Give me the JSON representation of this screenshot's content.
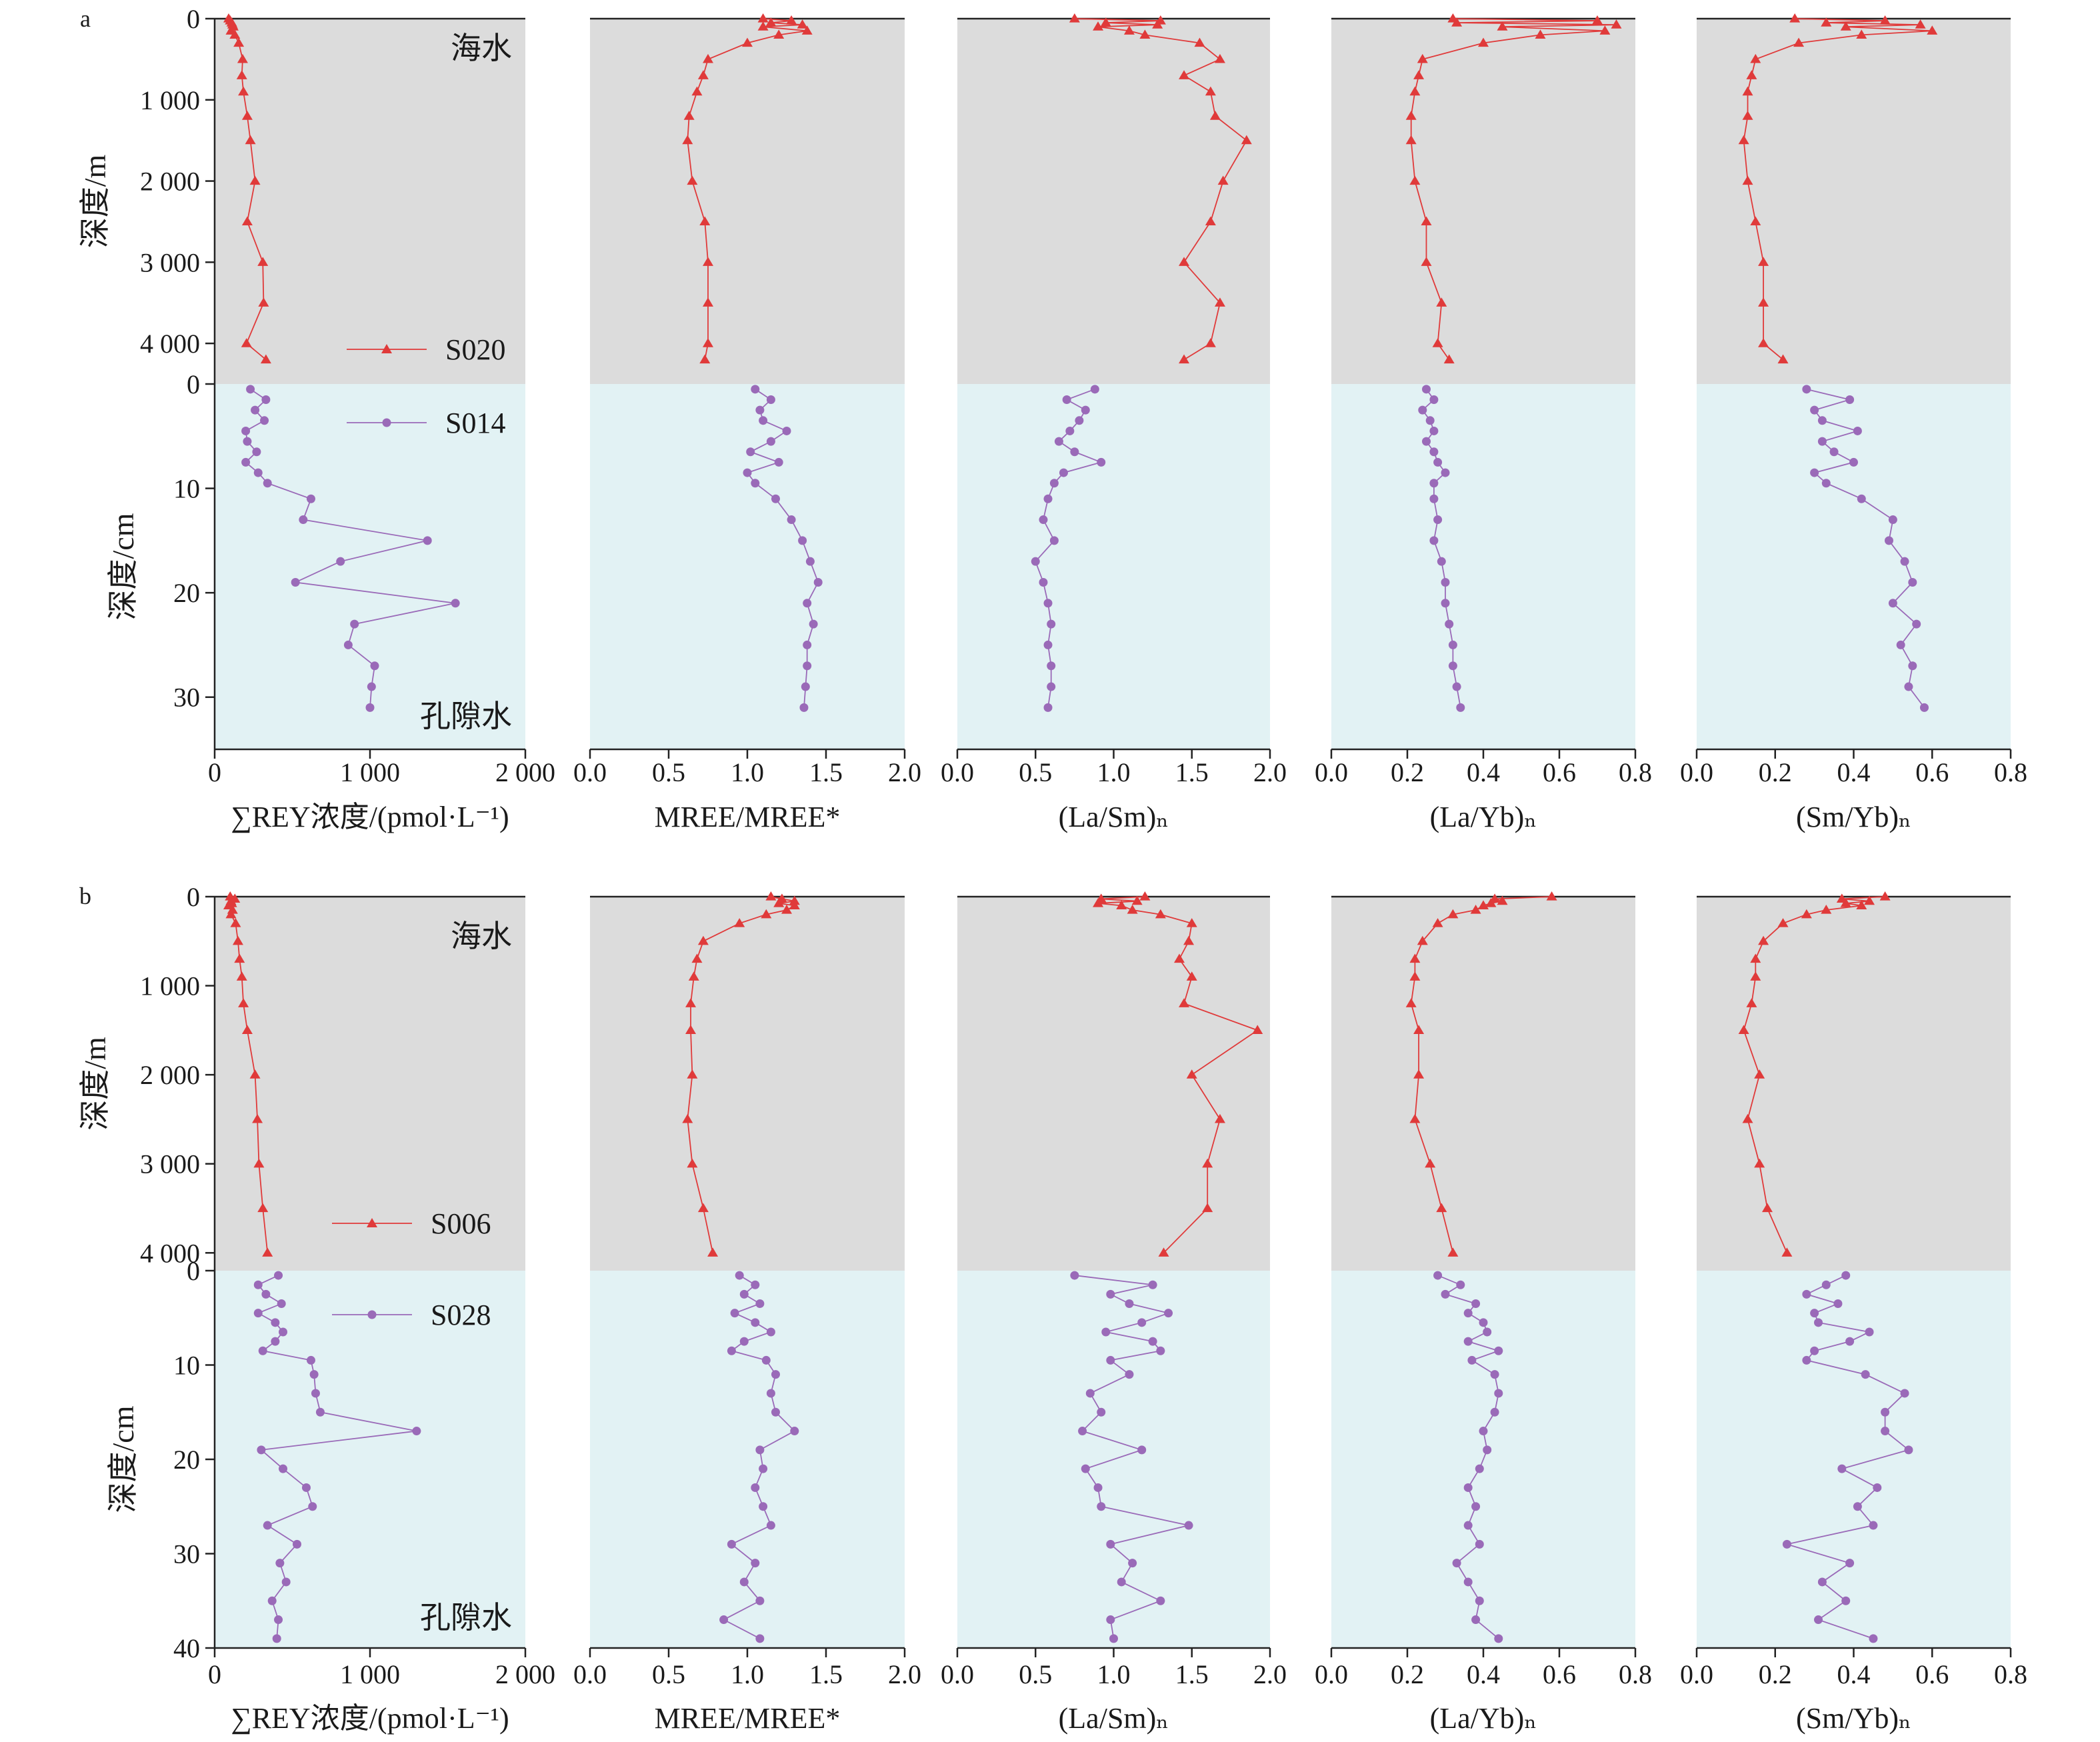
{
  "colors": {
    "seawater_bg": "#dcdcdc",
    "porewater_bg": "#e2f2f4",
    "seawater_series": "#e03a3a",
    "porewater_series": "#9a6ab8"
  },
  "labels": {
    "seawater": "海水",
    "porewater": "孔隙水",
    "ylabel_sea": "深度/m",
    "ylabel_pore": "深度/cm"
  },
  "panels": [
    {
      "tag": "a",
      "sea_ticks": [
        "0",
        "1 000",
        "2 000",
        "3 000",
        "4 000"
      ],
      "pore_ticks": [
        "0",
        "10",
        "20",
        "30"
      ],
      "legend": [
        "S020",
        "S014"
      ]
    },
    {
      "tag": "b",
      "sea_ticks": [
        "0",
        "1 000",
        "2 000",
        "3 000",
        "4 000"
      ],
      "pore_ticks": [
        "0",
        "10",
        "20",
        "30",
        "40"
      ],
      "legend": [
        "S006",
        "S028"
      ]
    }
  ],
  "columns": [
    {
      "xlabel": "∑REY浓度/(pmol·L⁻¹)",
      "xticks": [
        "0",
        "1 000",
        "2 000"
      ]
    },
    {
      "xlabel": "MREE/MREE*",
      "xticks": [
        "0.0",
        "0.5",
        "1.0",
        "1.5",
        "2.0"
      ]
    },
    {
      "xlabel": "(La/Sm)ₙ",
      "xticks": [
        "0.0",
        "0.5",
        "1.0",
        "1.5",
        "2.0"
      ]
    },
    {
      "xlabel": "(La/Yb)ₙ",
      "xticks": [
        "0.0",
        "0.2",
        "0.4",
        "0.6",
        "0.8"
      ]
    },
    {
      "xlabel": "(Sm/Yb)ₙ",
      "xticks": [
        "0.0",
        "0.2",
        "0.4",
        "0.6",
        "0.8"
      ]
    }
  ],
  "chart_data": [
    {
      "type": "line",
      "panel": "a",
      "y_axis": {
        "seawater": "深度/m",
        "porewater": "深度/cm"
      },
      "ylim_seawater_m": [
        0,
        4500
      ],
      "ylim_porewater_cm": [
        0,
        35
      ],
      "xlim": [
        [
          0,
          2000
        ],
        [
          0,
          2
        ],
        [
          0,
          2
        ],
        [
          0,
          0.8
        ],
        [
          0,
          0.8
        ]
      ],
      "seawater_depth_m": [
        0,
        25,
        50,
        75,
        100,
        150,
        200,
        300,
        500,
        700,
        900,
        1200,
        1500,
        2000,
        2500,
        3000,
        3500,
        4000,
        4200
      ],
      "porewater_depth_cm": [
        0.5,
        1.5,
        2.5,
        3.5,
        4.5,
        5.5,
        6.5,
        7.5,
        8.5,
        9.5,
        11,
        13,
        15,
        17,
        19,
        21,
        23,
        25,
        27,
        29,
        31
      ],
      "series": [
        {
          "name": "S020",
          "medium": "seawater",
          "variable": "∑REY",
          "values": [
            90,
            100,
            110,
            115,
            120,
            105,
            130,
            155,
            180,
            175,
            185,
            210,
            230,
            260,
            210,
            310,
            315,
            205,
            330
          ]
        },
        {
          "name": "S020",
          "medium": "seawater",
          "variable": "MREE/MREE*",
          "values": [
            1.1,
            1.28,
            1.15,
            1.35,
            1.1,
            1.38,
            1.2,
            1.0,
            0.75,
            0.72,
            0.68,
            0.63,
            0.62,
            0.65,
            0.73,
            0.75,
            0.75,
            0.75,
            0.73
          ]
        },
        {
          "name": "S020",
          "medium": "seawater",
          "variable": "(La/Sm)n",
          "values": [
            0.75,
            1.3,
            0.95,
            1.28,
            0.9,
            1.1,
            1.2,
            1.55,
            1.68,
            1.45,
            1.62,
            1.65,
            1.85,
            1.7,
            1.62,
            1.45,
            1.68,
            1.62,
            1.45
          ]
        },
        {
          "name": "S020",
          "medium": "seawater",
          "variable": "(La/Yb)n",
          "values": [
            0.32,
            0.7,
            0.33,
            0.75,
            0.45,
            0.72,
            0.55,
            0.4,
            0.24,
            0.23,
            0.22,
            0.21,
            0.21,
            0.22,
            0.25,
            0.25,
            0.29,
            0.28,
            0.31
          ]
        },
        {
          "name": "S020",
          "medium": "seawater",
          "variable": "(Sm/Yb)n",
          "values": [
            0.25,
            0.48,
            0.33,
            0.57,
            0.38,
            0.6,
            0.42,
            0.26,
            0.15,
            0.14,
            0.13,
            0.13,
            0.12,
            0.13,
            0.15,
            0.17,
            0.17,
            0.17,
            0.22
          ]
        },
        {
          "name": "S014",
          "medium": "porewater",
          "variable": "∑REY",
          "values": [
            230,
            330,
            260,
            320,
            200,
            210,
            270,
            200,
            280,
            340,
            620,
            570,
            1370,
            810,
            520,
            1550,
            900,
            860,
            1030,
            1010,
            1000
          ]
        },
        {
          "name": "S014",
          "medium": "porewater",
          "variable": "MREE/MREE*",
          "values": [
            1.05,
            1.15,
            1.08,
            1.1,
            1.25,
            1.15,
            1.02,
            1.2,
            1.0,
            1.05,
            1.18,
            1.28,
            1.35,
            1.4,
            1.45,
            1.38,
            1.42,
            1.38,
            1.38,
            1.37,
            1.36
          ]
        },
        {
          "name": "S014",
          "medium": "porewater",
          "variable": "(La/Sm)n",
          "values": [
            0.88,
            0.7,
            0.82,
            0.78,
            0.72,
            0.65,
            0.75,
            0.92,
            0.68,
            0.62,
            0.58,
            0.55,
            0.62,
            0.5,
            0.55,
            0.58,
            0.6,
            0.58,
            0.6,
            0.6,
            0.58
          ]
        },
        {
          "name": "S014",
          "medium": "porewater",
          "variable": "(La/Yb)n",
          "values": [
            0.25,
            0.27,
            0.24,
            0.26,
            0.27,
            0.25,
            0.27,
            0.28,
            0.3,
            0.27,
            0.27,
            0.28,
            0.27,
            0.29,
            0.3,
            0.3,
            0.31,
            0.32,
            0.32,
            0.33,
            0.34
          ]
        },
        {
          "name": "S014",
          "medium": "porewater",
          "variable": "(Sm/Yb)n",
          "values": [
            0.28,
            0.39,
            0.3,
            0.32,
            0.41,
            0.32,
            0.35,
            0.4,
            0.3,
            0.33,
            0.42,
            0.5,
            0.49,
            0.53,
            0.55,
            0.5,
            0.56,
            0.52,
            0.55,
            0.54,
            0.58
          ]
        }
      ]
    },
    {
      "type": "line",
      "panel": "b",
      "y_axis": {
        "seawater": "深度/m",
        "porewater": "深度/cm"
      },
      "ylim_seawater_m": [
        0,
        4200
      ],
      "ylim_porewater_cm": [
        0,
        40
      ],
      "xlim": [
        [
          0,
          2000
        ],
        [
          0,
          2
        ],
        [
          0,
          2
        ],
        [
          0,
          0.8
        ],
        [
          0,
          0.8
        ]
      ],
      "seawater_depth_m": [
        0,
        25,
        50,
        75,
        100,
        150,
        200,
        300,
        500,
        700,
        900,
        1200,
        1500,
        2000,
        2500,
        3000,
        3500,
        4000
      ],
      "porewater_depth_cm": [
        0.5,
        1.5,
        2.5,
        3.5,
        4.5,
        5.5,
        6.5,
        7.5,
        8.5,
        9.5,
        11,
        13,
        15,
        17,
        19,
        21,
        23,
        25,
        27,
        29,
        31,
        33,
        35,
        37,
        39
      ],
      "series": [
        {
          "name": "S006",
          "medium": "seawater",
          "variable": "∑REY",
          "values": [
            100,
            130,
            105,
            110,
            90,
            115,
            105,
            135,
            150,
            160,
            175,
            185,
            210,
            260,
            275,
            285,
            310,
            340
          ]
        },
        {
          "name": "S006",
          "medium": "seawater",
          "variable": "MREE/MREE*",
          "values": [
            1.15,
            1.22,
            1.3,
            1.2,
            1.3,
            1.25,
            1.12,
            0.95,
            0.72,
            0.68,
            0.66,
            0.64,
            0.64,
            0.65,
            0.62,
            0.65,
            0.72,
            0.78
          ]
        },
        {
          "name": "S006",
          "medium": "seawater",
          "variable": "(La/Sm)n",
          "values": [
            1.2,
            0.92,
            1.15,
            0.9,
            1.05,
            1.12,
            1.3,
            1.5,
            1.48,
            1.42,
            1.5,
            1.45,
            1.92,
            1.5,
            1.68,
            1.6,
            1.6,
            1.32
          ]
        },
        {
          "name": "S006",
          "medium": "seawater",
          "variable": "(La/Yb)n",
          "values": [
            0.58,
            0.43,
            0.45,
            0.42,
            0.4,
            0.38,
            0.32,
            0.28,
            0.24,
            0.22,
            0.22,
            0.21,
            0.23,
            0.23,
            0.22,
            0.26,
            0.29,
            0.32
          ]
        },
        {
          "name": "S006",
          "medium": "seawater",
          "variable": "(Sm/Yb)n",
          "values": [
            0.48,
            0.37,
            0.44,
            0.38,
            0.42,
            0.33,
            0.28,
            0.22,
            0.17,
            0.15,
            0.15,
            0.14,
            0.12,
            0.16,
            0.13,
            0.16,
            0.18,
            0.23
          ]
        },
        {
          "name": "S028",
          "medium": "porewater",
          "variable": "∑REY",
          "values": [
            410,
            280,
            330,
            430,
            280,
            390,
            440,
            390,
            310,
            620,
            640,
            650,
            680,
            1300,
            300,
            440,
            590,
            630,
            340,
            530,
            420,
            460,
            370,
            410,
            400
          ]
        },
        {
          "name": "S028",
          "medium": "porewater",
          "variable": "MREE/MREE*",
          "values": [
            0.95,
            1.05,
            0.98,
            1.08,
            0.92,
            1.05,
            1.15,
            0.98,
            0.9,
            1.12,
            1.18,
            1.15,
            1.18,
            1.3,
            1.08,
            1.1,
            1.05,
            1.1,
            1.15,
            0.9,
            1.05,
            0.98,
            1.08,
            0.85,
            1.08
          ]
        },
        {
          "name": "S028",
          "medium": "porewater",
          "variable": "(La/Sm)n",
          "values": [
            0.75,
            1.25,
            0.98,
            1.1,
            1.35,
            1.18,
            0.95,
            1.25,
            1.3,
            0.98,
            1.1,
            0.85,
            0.92,
            0.8,
            1.18,
            0.82,
            0.9,
            0.92,
            1.48,
            0.98,
            1.12,
            1.05,
            1.3,
            0.98,
            1.0
          ]
        },
        {
          "name": "S028",
          "medium": "porewater",
          "variable": "(La/Yb)n",
          "values": [
            0.28,
            0.34,
            0.3,
            0.38,
            0.36,
            0.4,
            0.41,
            0.36,
            0.44,
            0.37,
            0.43,
            0.44,
            0.43,
            0.4,
            0.41,
            0.39,
            0.36,
            0.38,
            0.36,
            0.39,
            0.33,
            0.36,
            0.39,
            0.38,
            0.44
          ]
        },
        {
          "name": "S028",
          "medium": "porewater",
          "variable": "(Sm/Yb)n",
          "values": [
            0.38,
            0.33,
            0.28,
            0.36,
            0.3,
            0.31,
            0.44,
            0.39,
            0.3,
            0.28,
            0.43,
            0.53,
            0.48,
            0.48,
            0.54,
            0.37,
            0.46,
            0.41,
            0.45,
            0.23,
            0.39,
            0.32,
            0.38,
            0.31,
            0.45
          ]
        }
      ]
    }
  ]
}
